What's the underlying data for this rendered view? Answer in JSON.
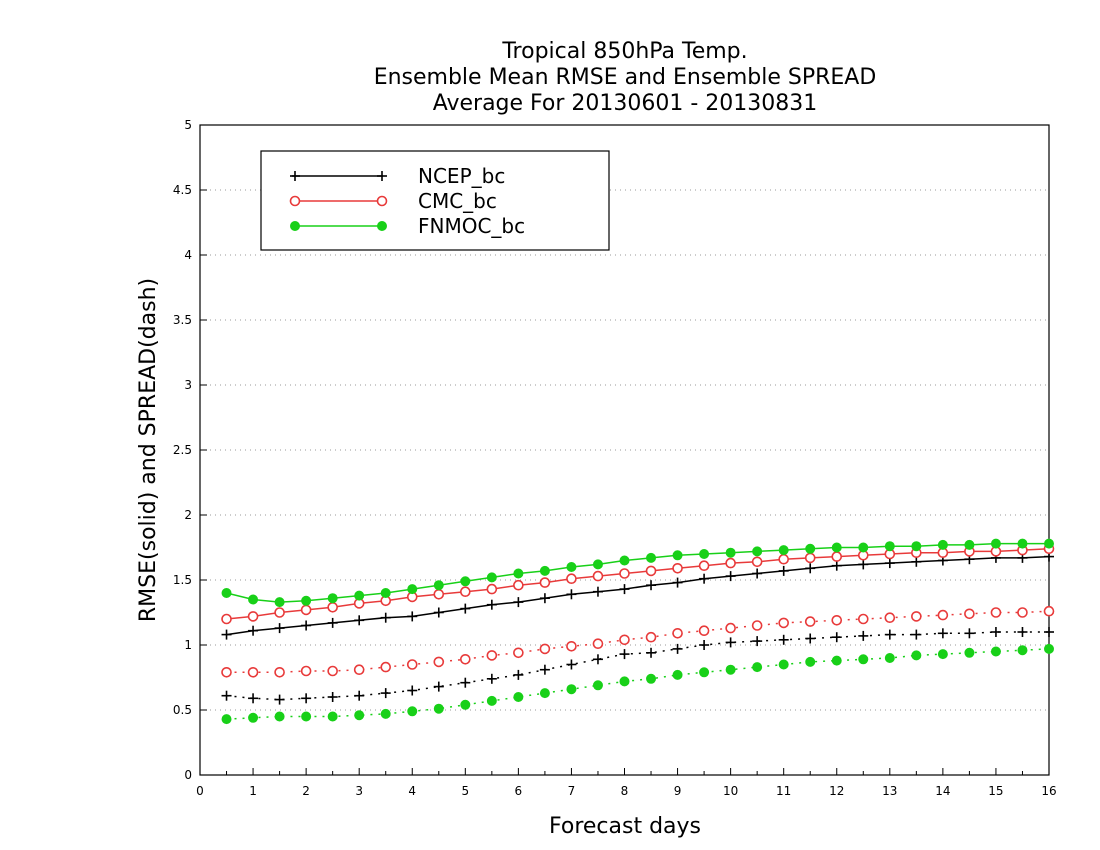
{
  "chart_data": {
    "type": "line",
    "title": [
      "Tropical 850hPa Temp.",
      "Ensemble Mean RMSE and Ensemble SPREAD",
      "Average For 20130601 - 20130831"
    ],
    "xlabel": "Forecast days",
    "ylabel": "RMSE(solid) and SPREAD(dash)",
    "xlim": [
      0,
      16
    ],
    "ylim": [
      0,
      5
    ],
    "x_ticks": [
      "0",
      "1",
      "2",
      "3",
      "4",
      "5",
      "6",
      "7",
      "8",
      "9",
      "10",
      "11",
      "12",
      "13",
      "14",
      "15",
      "16"
    ],
    "y_ticks": [
      "0",
      "0.5",
      "1",
      "1.5",
      "2",
      "2.5",
      "3",
      "3.5",
      "4",
      "4.5",
      "5"
    ],
    "grid": "horizontal dotted",
    "legend_position": "top-left",
    "x": [
      0.5,
      1,
      1.5,
      2,
      2.5,
      3,
      3.5,
      4,
      4.5,
      5,
      5.5,
      6,
      6.5,
      7,
      7.5,
      8,
      8.5,
      9,
      9.5,
      10,
      10.5,
      11,
      11.5,
      12,
      12.5,
      13,
      13.5,
      14,
      14.5,
      15,
      15.5,
      16
    ],
    "series": [
      {
        "name": "NCEP_bc",
        "color": "#000000",
        "marker": "plus",
        "rmse": [
          1.08,
          1.11,
          1.13,
          1.15,
          1.17,
          1.19,
          1.21,
          1.22,
          1.25,
          1.28,
          1.31,
          1.33,
          1.36,
          1.39,
          1.41,
          1.43,
          1.46,
          1.48,
          1.51,
          1.53,
          1.55,
          1.57,
          1.59,
          1.61,
          1.62,
          1.63,
          1.64,
          1.65,
          1.66,
          1.67,
          1.67,
          1.68
        ],
        "spread": [
          0.61,
          0.59,
          0.58,
          0.59,
          0.6,
          0.61,
          0.63,
          0.65,
          0.68,
          0.71,
          0.74,
          0.77,
          0.81,
          0.85,
          0.89,
          0.93,
          0.94,
          0.97,
          1.0,
          1.02,
          1.03,
          1.04,
          1.05,
          1.06,
          1.07,
          1.08,
          1.08,
          1.09,
          1.09,
          1.1,
          1.1,
          1.1
        ]
      },
      {
        "name": "CMC_bc",
        "color": "#e83a3a",
        "marker": "open-circle",
        "rmse": [
          1.2,
          1.22,
          1.25,
          1.27,
          1.29,
          1.32,
          1.34,
          1.37,
          1.39,
          1.41,
          1.43,
          1.46,
          1.48,
          1.51,
          1.53,
          1.55,
          1.57,
          1.59,
          1.61,
          1.63,
          1.64,
          1.66,
          1.67,
          1.68,
          1.69,
          1.7,
          1.71,
          1.71,
          1.72,
          1.72,
          1.73,
          1.74
        ],
        "spread": [
          0.79,
          0.79,
          0.79,
          0.8,
          0.8,
          0.81,
          0.83,
          0.85,
          0.87,
          0.89,
          0.92,
          0.94,
          0.97,
          0.99,
          1.01,
          1.04,
          1.06,
          1.09,
          1.11,
          1.13,
          1.15,
          1.17,
          1.18,
          1.19,
          1.2,
          1.21,
          1.22,
          1.23,
          1.24,
          1.25,
          1.25,
          1.26
        ]
      },
      {
        "name": "FNMOC_bc",
        "color": "#18d018",
        "marker": "filled-circle",
        "rmse": [
          1.4,
          1.35,
          1.33,
          1.34,
          1.36,
          1.38,
          1.4,
          1.43,
          1.46,
          1.49,
          1.52,
          1.55,
          1.57,
          1.6,
          1.62,
          1.65,
          1.67,
          1.69,
          1.7,
          1.71,
          1.72,
          1.73,
          1.74,
          1.75,
          1.75,
          1.76,
          1.76,
          1.77,
          1.77,
          1.78,
          1.78,
          1.78
        ],
        "spread": [
          0.43,
          0.44,
          0.45,
          0.45,
          0.45,
          0.46,
          0.47,
          0.49,
          0.51,
          0.54,
          0.57,
          0.6,
          0.63,
          0.66,
          0.69,
          0.72,
          0.74,
          0.77,
          0.79,
          0.81,
          0.83,
          0.85,
          0.87,
          0.88,
          0.89,
          0.9,
          0.92,
          0.93,
          0.94,
          0.95,
          0.96,
          0.97
        ]
      }
    ]
  }
}
